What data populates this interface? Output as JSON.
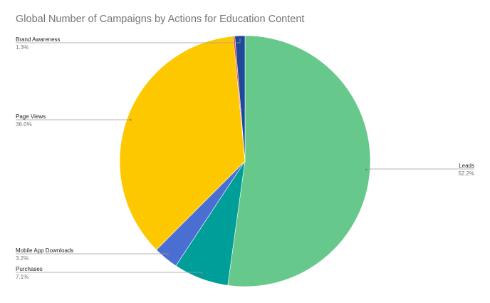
{
  "chart_data": {
    "type": "pie",
    "title": "Global Number of Campaigns by Actions for Education Content",
    "legend": "none",
    "slices": [
      {
        "label": "Leads",
        "value": 52.2,
        "pct_label": "52.2%",
        "color": "#66c88a"
      },
      {
        "label": "Purchases",
        "value": 7.1,
        "pct_label": "7.1%",
        "color": "#009e98"
      },
      {
        "label": "Mobile App Downloads",
        "value": 3.2,
        "pct_label": "3.2%",
        "color": "#4a6ed1"
      },
      {
        "label": "Page Views",
        "value": 36.0,
        "pct_label": "36.0%",
        "color": "#fec800"
      },
      {
        "label": "",
        "value": 0.2,
        "pct_label": "",
        "color": "#e53935"
      },
      {
        "label": "Brand Awareness",
        "value": 1.3,
        "pct_label": "1.3%",
        "color": "#1e4a9c"
      }
    ]
  }
}
